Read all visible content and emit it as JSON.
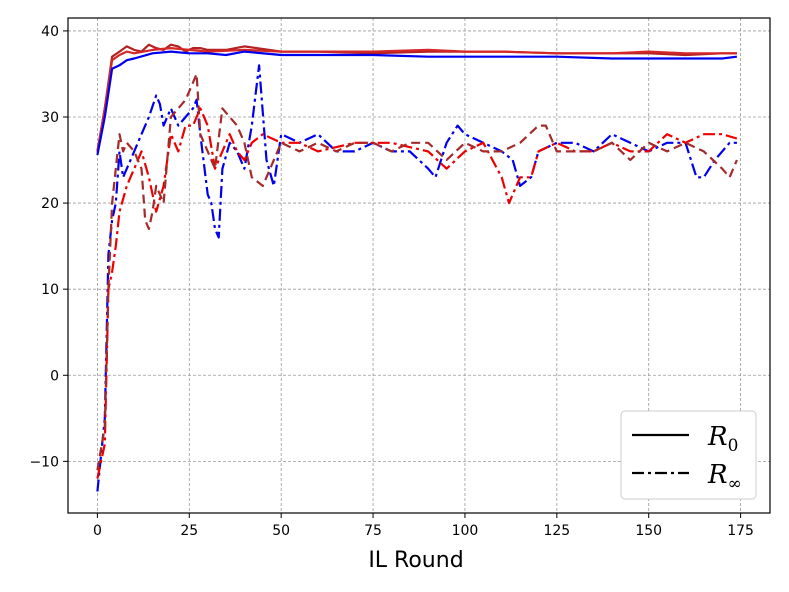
{
  "chart_data": {
    "type": "line",
    "title": "",
    "xlabel": "IL Round",
    "ylabel": "",
    "xlim": [
      -8,
      183
    ],
    "ylim": [
      -16,
      41.5
    ],
    "xticks": [
      0,
      25,
      50,
      75,
      100,
      125,
      150,
      175
    ],
    "yticks": [
      -10,
      0,
      10,
      20,
      30,
      40
    ],
    "grid": true,
    "legend": {
      "placement": "lower-right",
      "entries": [
        {
          "style": "solid",
          "symbol": "R",
          "subscript": "0"
        },
        {
          "style": "dashdot",
          "symbol": "R",
          "subscript": "∞"
        }
      ]
    },
    "series": [
      {
        "color": "#b22222",
        "style": "solid",
        "x": [
          0,
          2,
          4,
          6,
          8,
          10,
          12,
          14,
          16,
          18,
          20,
          22,
          24,
          26,
          28,
          30,
          35,
          40,
          50,
          60,
          75,
          90,
          100,
          110,
          125,
          140,
          150,
          160,
          170,
          174
        ],
        "y": [
          26,
          31,
          37,
          37.6,
          38.2,
          37.8,
          37.6,
          38.4,
          38,
          37.8,
          38.4,
          38.2,
          37.6,
          38,
          38,
          37.8,
          37.8,
          38.2,
          37.6,
          37.6,
          37.4,
          37.6,
          37.6,
          37.6,
          37.4,
          37.4,
          37.4,
          37.2,
          37.4,
          37.4
        ]
      },
      {
        "color": "#d62728",
        "style": "solid",
        "x": [
          0,
          2,
          4,
          6,
          8,
          10,
          15,
          20,
          25,
          30,
          40,
          50,
          75,
          90,
          100,
          110,
          125,
          140,
          150,
          160,
          170,
          174
        ],
        "y": [
          26,
          31,
          36.6,
          37.2,
          37.6,
          37.4,
          37.8,
          38,
          37.8,
          37.6,
          37.8,
          37.6,
          37.6,
          37.8,
          37.6,
          37.6,
          37.4,
          37.4,
          37.6,
          37.4,
          37.4,
          37.4
        ]
      },
      {
        "color": "#0000ee",
        "style": "solid",
        "x": [
          0,
          2,
          4,
          6,
          8,
          10,
          15,
          20,
          25,
          30,
          35,
          40,
          50,
          60,
          75,
          90,
          100,
          110,
          125,
          140,
          150,
          160,
          170,
          174
        ],
        "y": [
          25.6,
          30,
          35.6,
          36,
          36.6,
          36.8,
          37.4,
          37.6,
          37.4,
          37.4,
          37.2,
          37.6,
          37.2,
          37.2,
          37.2,
          37,
          37,
          37,
          37,
          36.8,
          36.8,
          36.8,
          36.8,
          37
        ]
      },
      {
        "color": "#0000ee",
        "style": "dashdot",
        "x": [
          0,
          2,
          3,
          4,
          5,
          6,
          7,
          8,
          10,
          12,
          14,
          16,
          17,
          18,
          20,
          22,
          24,
          26,
          27,
          28,
          30,
          31,
          32,
          33,
          34,
          36,
          38,
          40,
          42,
          44,
          46,
          48,
          50,
          55,
          60,
          65,
          70,
          75,
          80,
          85,
          90,
          92,
          95,
          98,
          100,
          105,
          110,
          113,
          115,
          118,
          120,
          125,
          130,
          135,
          140,
          145,
          150,
          155,
          160,
          163,
          165,
          168,
          170,
          172,
          174
        ],
        "y": [
          -13.5,
          -5,
          14,
          18,
          20,
          26,
          23,
          24,
          26,
          28,
          30,
          32.5,
          31.5,
          29,
          31,
          29,
          30,
          31,
          32,
          28,
          21,
          20,
          17,
          16,
          24,
          27,
          26,
          24,
          29,
          36,
          25,
          22,
          28,
          27,
          28,
          26,
          26,
          27,
          26,
          26,
          24,
          23,
          27,
          29,
          28,
          27,
          26,
          25,
          22,
          23,
          26,
          27,
          27,
          26,
          28,
          27,
          26,
          27,
          27,
          23,
          23,
          25,
          26,
          27,
          27
        ]
      },
      {
        "color": "#ee0000",
        "style": "dashdot",
        "x": [
          0,
          2,
          3,
          4,
          5,
          6,
          8,
          10,
          12,
          14,
          16,
          18,
          20,
          22,
          24,
          26,
          28,
          30,
          32,
          34,
          36,
          38,
          40,
          42,
          45,
          50,
          55,
          60,
          70,
          80,
          90,
          95,
          100,
          105,
          110,
          112,
          115,
          118,
          120,
          125,
          130,
          135,
          140,
          145,
          150,
          155,
          160,
          165,
          170,
          174
        ],
        "y": [
          -12,
          -8,
          10,
          12,
          15,
          19,
          22,
          24,
          26,
          23,
          19,
          22,
          28,
          26,
          29,
          29,
          31,
          29,
          24,
          26,
          28,
          26,
          25,
          27,
          28,
          27,
          27,
          26,
          27,
          27,
          26,
          24,
          26,
          27,
          23,
          20,
          23,
          23,
          26,
          27,
          26,
          26,
          27,
          26,
          26,
          28,
          27,
          28,
          28,
          27.5
        ]
      },
      {
        "color": "#a52a2a",
        "style": "dashed",
        "x": [
          0,
          2,
          3,
          4,
          6,
          7,
          8,
          10,
          12,
          13,
          14,
          15,
          16,
          18,
          20,
          22,
          24,
          26,
          27,
          28,
          30,
          32,
          34,
          36,
          38,
          40,
          42,
          45,
          50,
          55,
          60,
          65,
          70,
          75,
          80,
          85,
          90,
          95,
          100,
          105,
          110,
          115,
          120,
          122,
          125,
          130,
          135,
          140,
          145,
          150,
          155,
          160,
          165,
          170,
          172,
          174
        ],
        "y": [
          -11,
          -6,
          10,
          20,
          28,
          26,
          27,
          26,
          24,
          18,
          17,
          19,
          22,
          20,
          30,
          31,
          32,
          34,
          35,
          28,
          26,
          24,
          31,
          30,
          29,
          27,
          23,
          22,
          27,
          26,
          27,
          26,
          27,
          27,
          26,
          27,
          27,
          25,
          27,
          26,
          26,
          27,
          29,
          29,
          26,
          26,
          26,
          27,
          25,
          27,
          26,
          27,
          26,
          24,
          23,
          25
        ]
      }
    ]
  }
}
